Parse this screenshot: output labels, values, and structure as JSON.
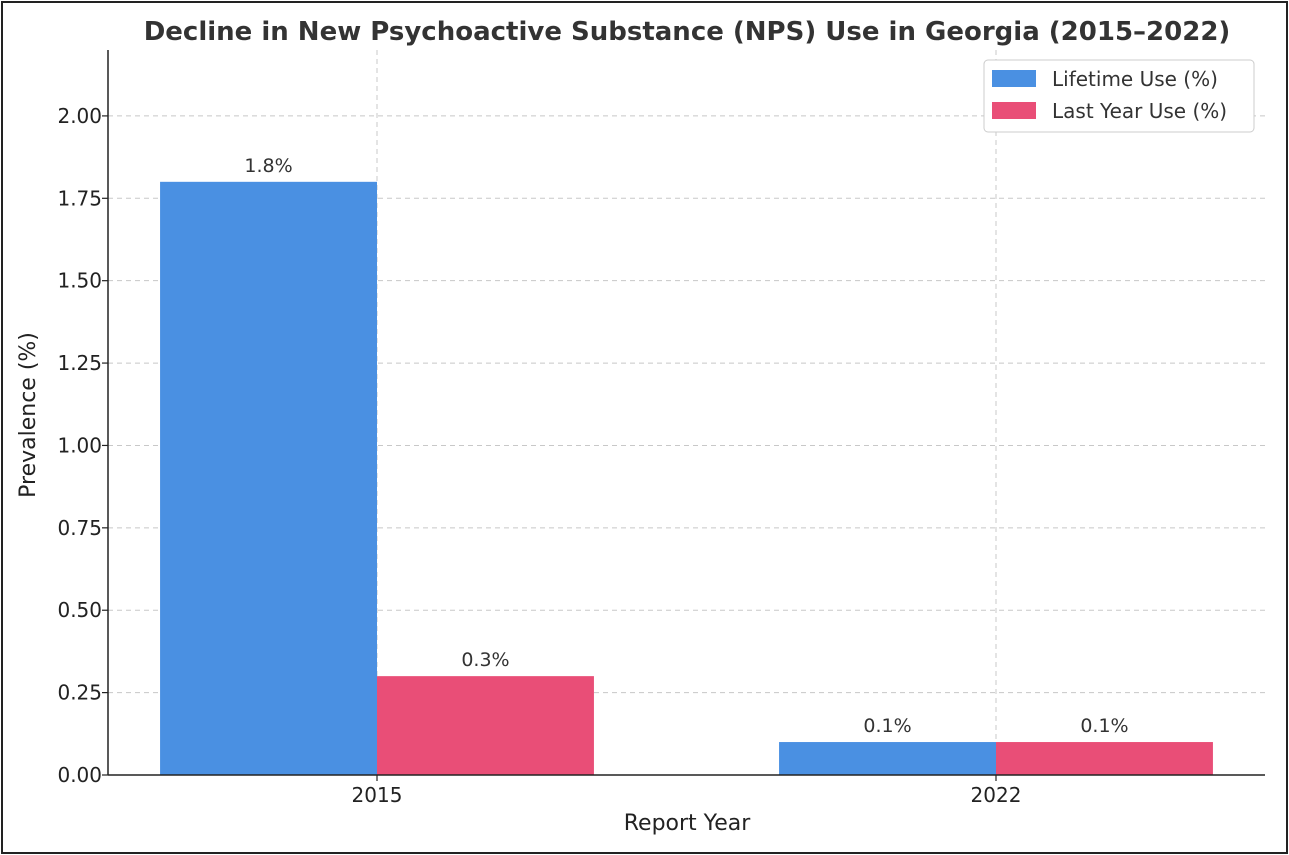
{
  "chart_data": {
    "type": "bar",
    "title": "Decline in New Psychoactive Substance (NPS) Use in Georgia (2015–2022)",
    "xlabel": "Report Year",
    "ylabel": "Prevalence (%)",
    "categories": [
      "2015",
      "2022"
    ],
    "series": [
      {
        "name": "Lifetime Use (%)",
        "values": [
          1.8,
          0.1
        ],
        "labels": [
          "1.8%",
          "0.1%"
        ],
        "color": "#4a90e2"
      },
      {
        "name": "Last Year Use (%)",
        "values": [
          0.3,
          0.1
        ],
        "labels": [
          "0.3%",
          "0.1%"
        ],
        "color": "#e94e77"
      }
    ],
    "ylim": [
      0,
      2.2
    ],
    "yticks": [
      0,
      0.25,
      0.5,
      0.75,
      1.0,
      1.25,
      1.5,
      1.75,
      2.0
    ],
    "ytick_labels": [
      "0.00",
      "0.25",
      "0.50",
      "0.75",
      "1.00",
      "1.25",
      "1.50",
      "1.75",
      "2.00"
    ],
    "grid": true,
    "legend_position": "top-right"
  }
}
